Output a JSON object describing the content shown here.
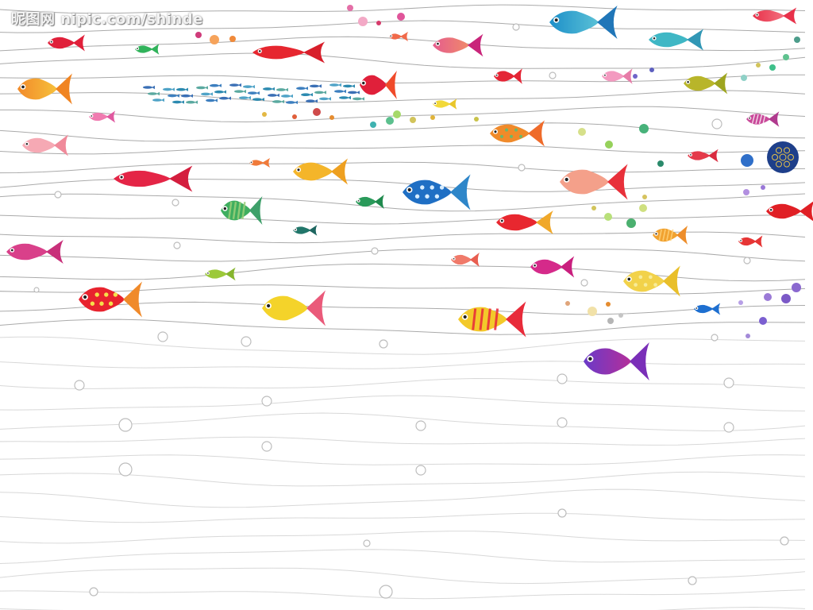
{
  "watermark": {
    "text": "昵图网 nipic.com/shinde"
  },
  "scene": {
    "background": "#ffffff",
    "line_color": "#8e8e8e",
    "bubble_stroke": "#bdbdbd"
  }
}
